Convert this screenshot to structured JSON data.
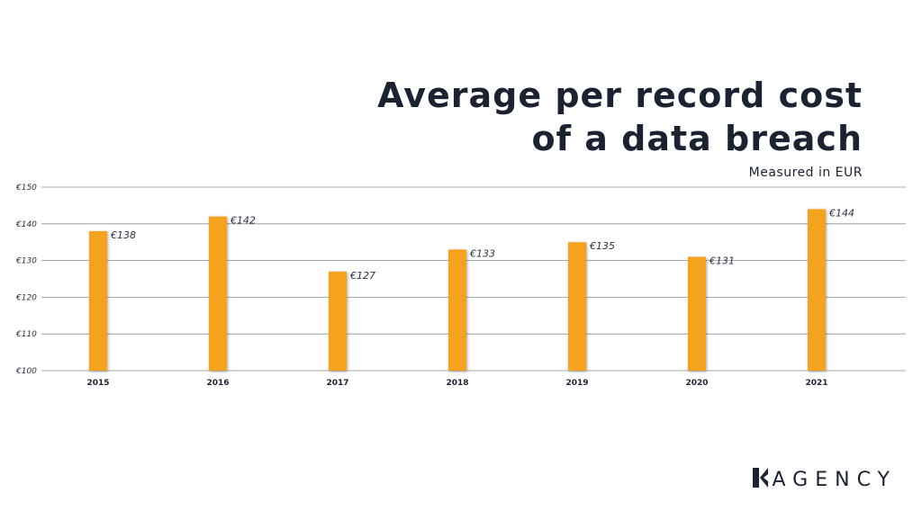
{
  "title_lines": [
    "Average per record cost",
    "of a data breach"
  ],
  "subtitle": "Measured in EUR",
  "logo": {
    "mark": "K",
    "text": "AGENCY"
  },
  "colors": {
    "bar": "#f5a21b",
    "grid": "#8a8f99",
    "text": "#1b2333",
    "axis_label": "#2b3140"
  },
  "chart_data": {
    "type": "bar",
    "categories": [
      "2015",
      "2016",
      "2017",
      "2018",
      "2019",
      "2020",
      "2021"
    ],
    "values": [
      138,
      142,
      127,
      133,
      135,
      131,
      144
    ],
    "data_labels": [
      "€138",
      "€142",
      "€127",
      "€133",
      "€135",
      "€131",
      "€144"
    ],
    "ylim": [
      100,
      150
    ],
    "yticks": [
      100,
      110,
      120,
      130,
      140,
      150
    ],
    "ytick_labels": [
      "€100",
      "€110",
      "€120",
      "€130",
      "€140",
      "€150"
    ],
    "title": "Average per record cost of a data breach",
    "subtitle": "Measured in EUR",
    "xlabel": "",
    "ylabel": "",
    "grid": true,
    "legend": "none"
  }
}
